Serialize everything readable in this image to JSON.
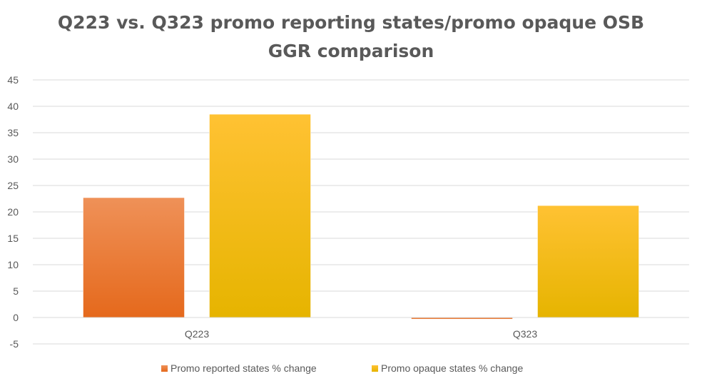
{
  "chart_data": {
    "type": "bar",
    "title_lines": [
      "Q223 vs. Q323 promo reporting states/promo opaque OSB",
      "GGR comparison"
    ],
    "categories": [
      "Q223",
      "Q323"
    ],
    "series": [
      {
        "name": "Promo reported states % change",
        "values": [
          22.7,
          -0.3
        ],
        "color_top": "#EF9158",
        "color_bottom": "#E5691C"
      },
      {
        "name": "Promo opaque states % change",
        "values": [
          38.5,
          21.2
        ],
        "color_top": "#FFC233",
        "color_bottom": "#E6B400"
      }
    ],
    "ylim": [
      -5,
      45
    ],
    "yticks": [
      -5,
      0,
      5,
      10,
      15,
      20,
      25,
      30,
      35,
      40,
      45
    ],
    "grid": true,
    "legend_position": "bottom"
  }
}
